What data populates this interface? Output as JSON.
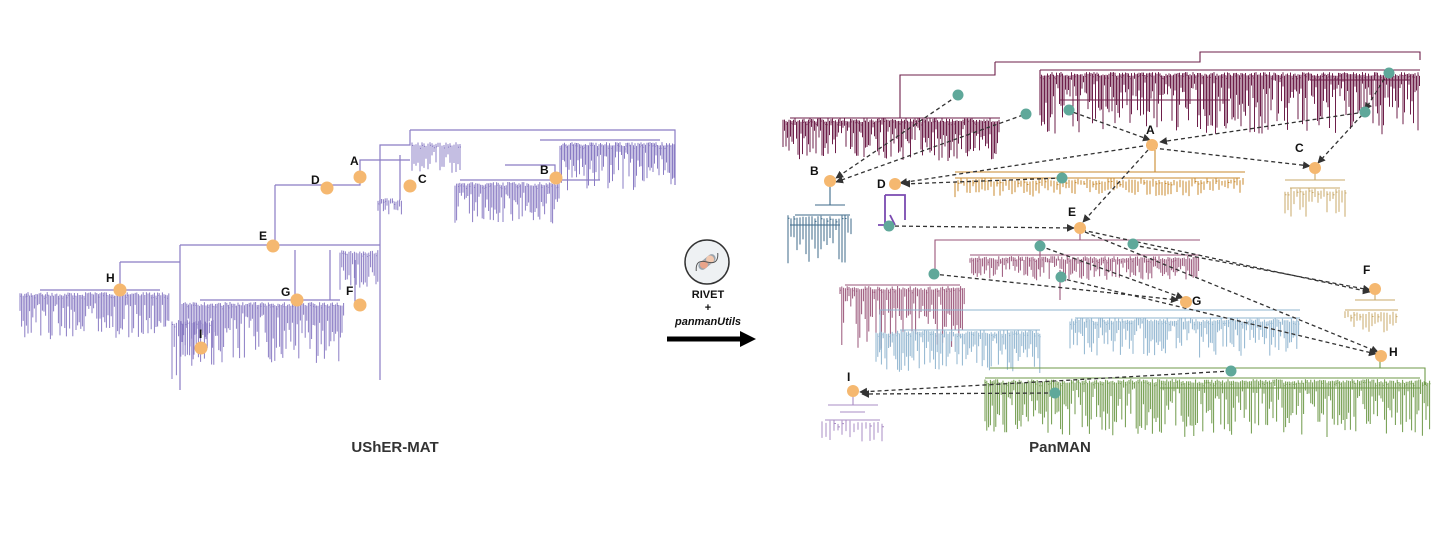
{
  "left": {
    "title": "UShER-MAT",
    "nodes": [
      {
        "label": "A"
      },
      {
        "label": "B"
      },
      {
        "label": "C"
      },
      {
        "label": "D"
      },
      {
        "label": "E"
      },
      {
        "label": "F"
      },
      {
        "label": "G"
      },
      {
        "label": "H"
      },
      {
        "label": "I"
      }
    ]
  },
  "middle": {
    "tool_1": "RIVET",
    "plus": "+",
    "tool_2": "panmanUtils"
  },
  "right": {
    "title": "PanMAN",
    "nodes": [
      {
        "label": "A"
      },
      {
        "label": "B"
      },
      {
        "label": "C"
      },
      {
        "label": "D"
      },
      {
        "label": "E"
      },
      {
        "label": "F"
      },
      {
        "label": "G"
      },
      {
        "label": "H"
      },
      {
        "label": "I"
      }
    ]
  },
  "colors": {
    "usher_tree": "#8a7cc4",
    "node_orange": "#f5b870",
    "node_teal": "#5fa89a",
    "maroon": "#6e1f4a",
    "mauve": "#9a5579",
    "gold": "#c98a2e",
    "tan": "#c9a868",
    "steel": "#3d6a8a",
    "lightblue": "#8fb4cf",
    "green": "#6f9a4a",
    "purple": "#7a4ab0",
    "lilac": "#a98cc4",
    "arrow": "#333333"
  }
}
